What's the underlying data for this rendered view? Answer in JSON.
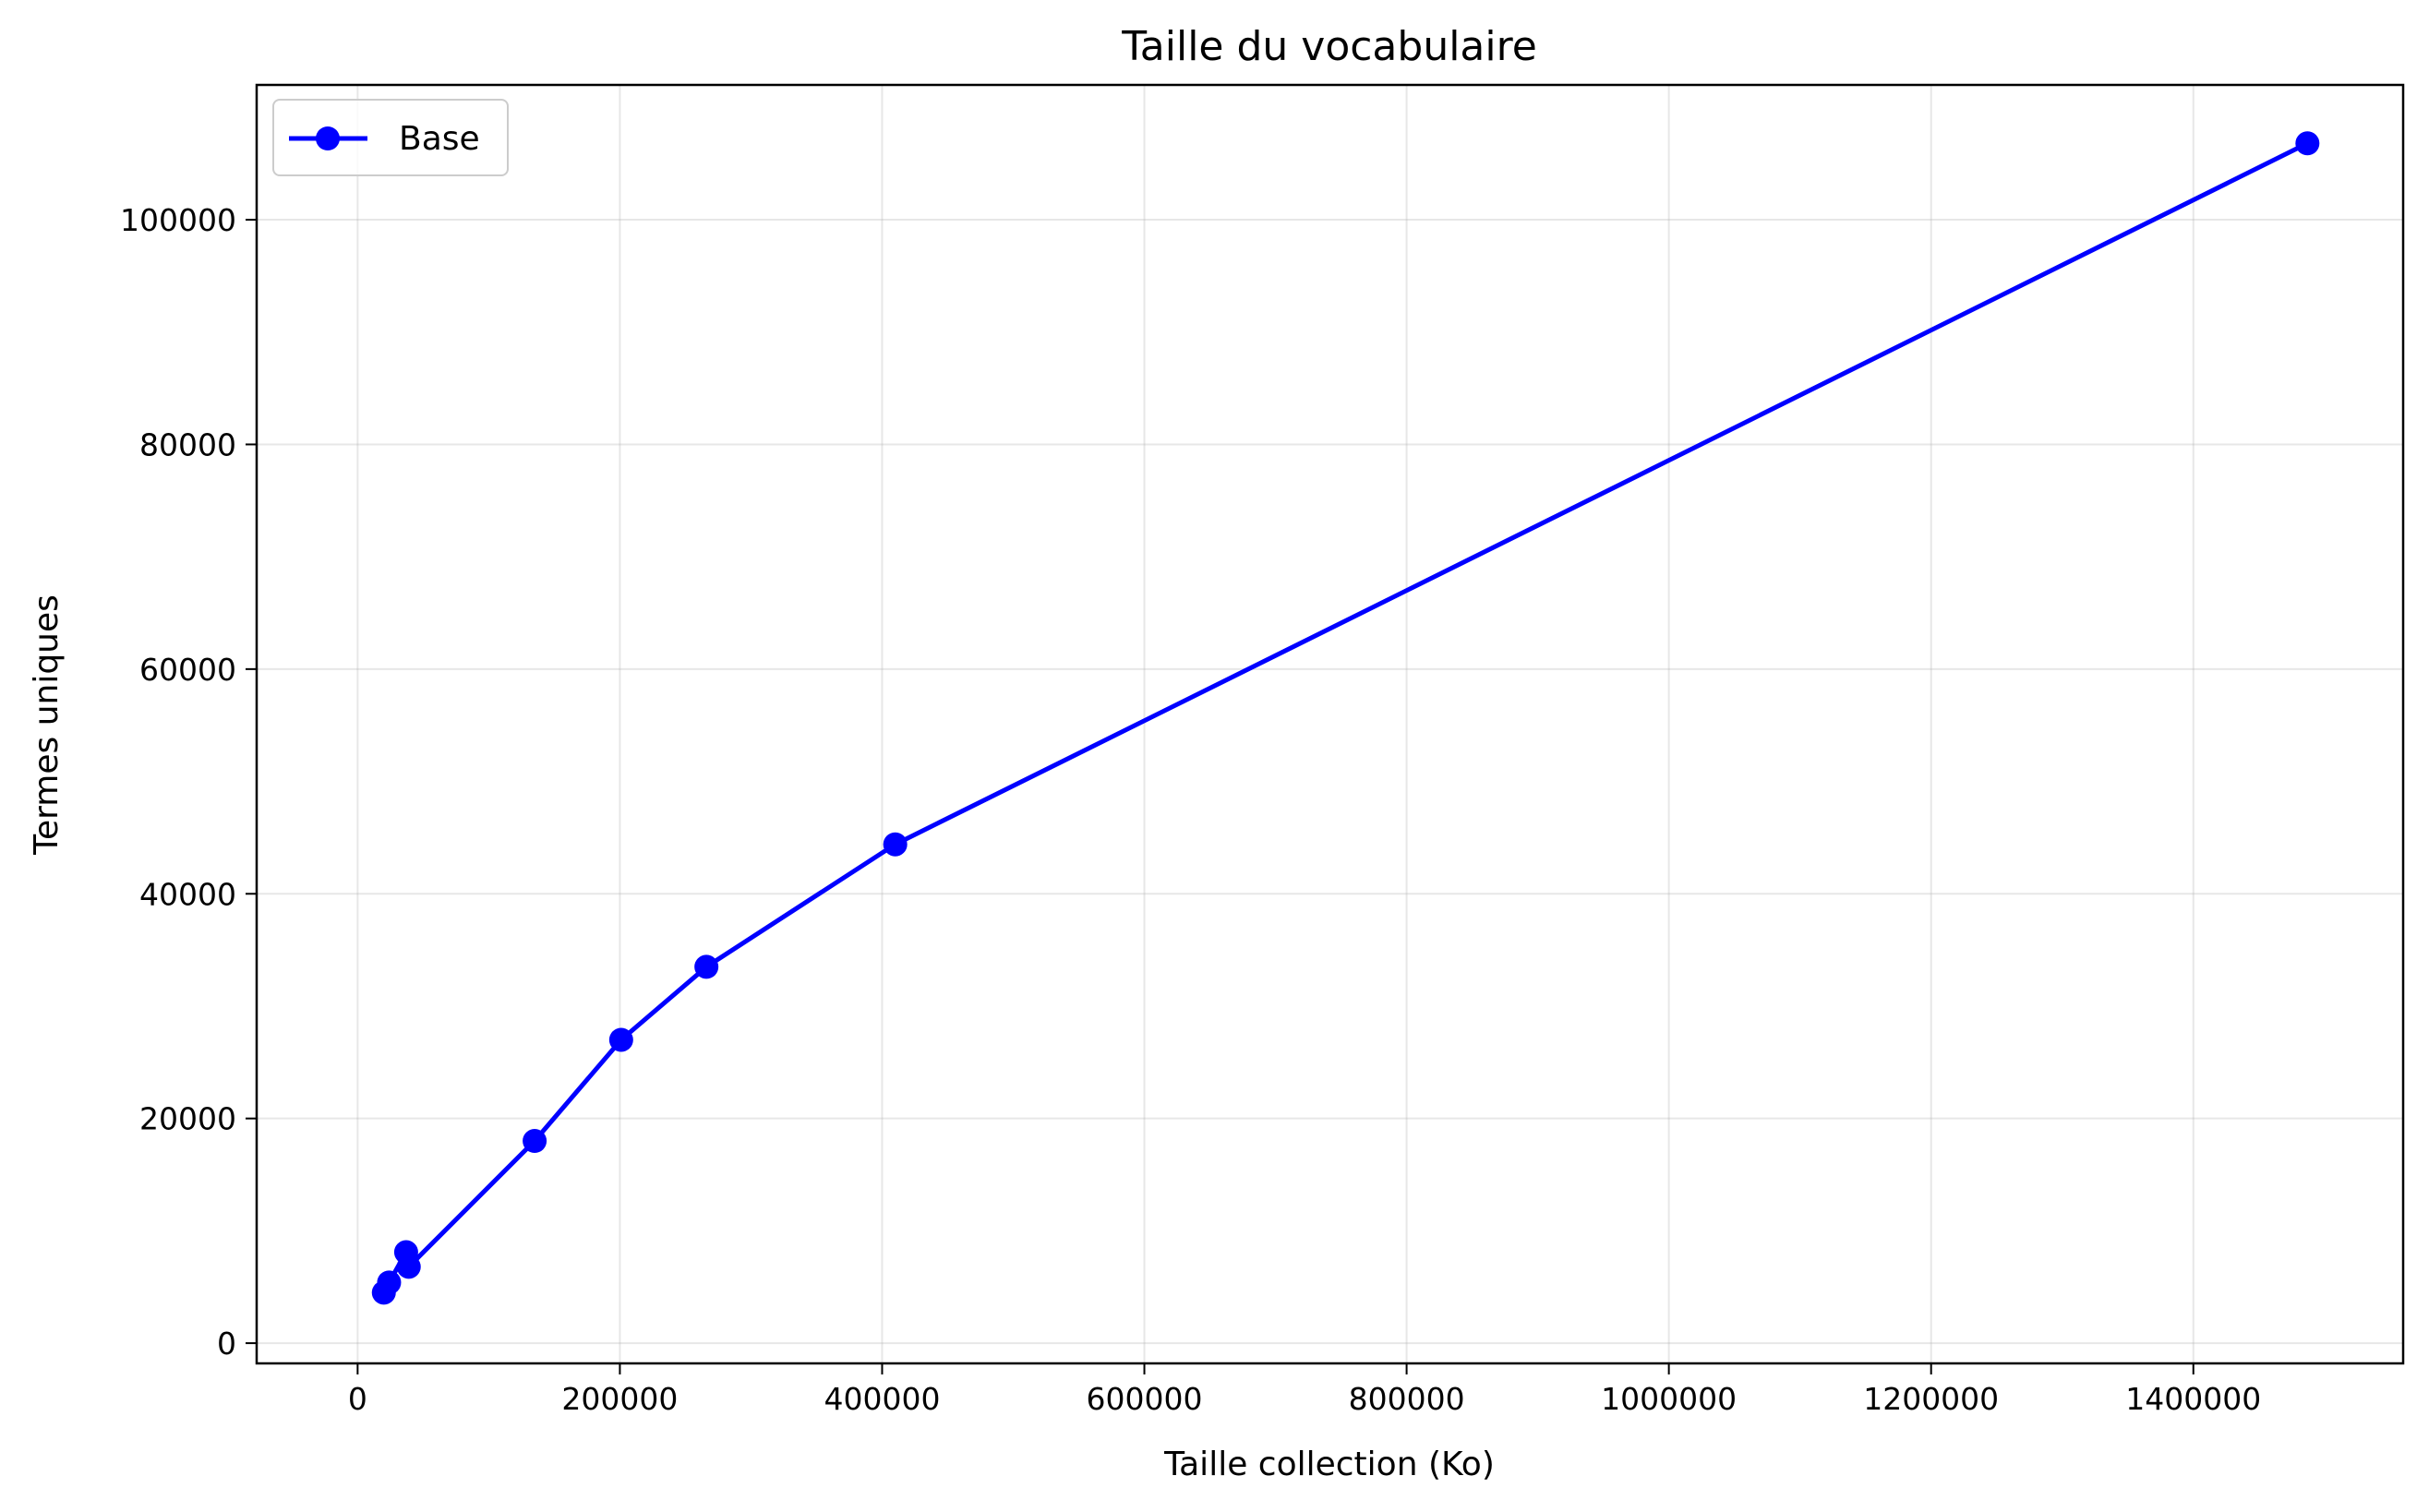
{
  "chart_data": {
    "type": "line",
    "title": "Taille du vocabulaire",
    "xlabel": "Taille collection (Ko)",
    "ylabel": "Termes uniques",
    "xlim": [
      -77000,
      1560000
    ],
    "ylim": [
      -1800,
      112000
    ],
    "xticks": [
      0,
      200000,
      400000,
      600000,
      800000,
      1000000,
      1200000,
      1400000
    ],
    "yticks": [
      0,
      20000,
      40000,
      60000,
      80000,
      100000
    ],
    "grid": true,
    "legend_position": "upper-left",
    "series": [
      {
        "name": "Base",
        "color": "#0000ff",
        "marker": "circle",
        "points": [
          {
            "x": 20000,
            "y": 4500
          },
          {
            "x": 24000,
            "y": 5400
          },
          {
            "x": 37000,
            "y": 8100
          },
          {
            "x": 39000,
            "y": 6800
          },
          {
            "x": 135000,
            "y": 18000
          },
          {
            "x": 201000,
            "y": 27000
          },
          {
            "x": 266000,
            "y": 33500
          },
          {
            "x": 410000,
            "y": 44400
          },
          {
            "x": 1487000,
            "y": 106800
          }
        ]
      }
    ]
  }
}
